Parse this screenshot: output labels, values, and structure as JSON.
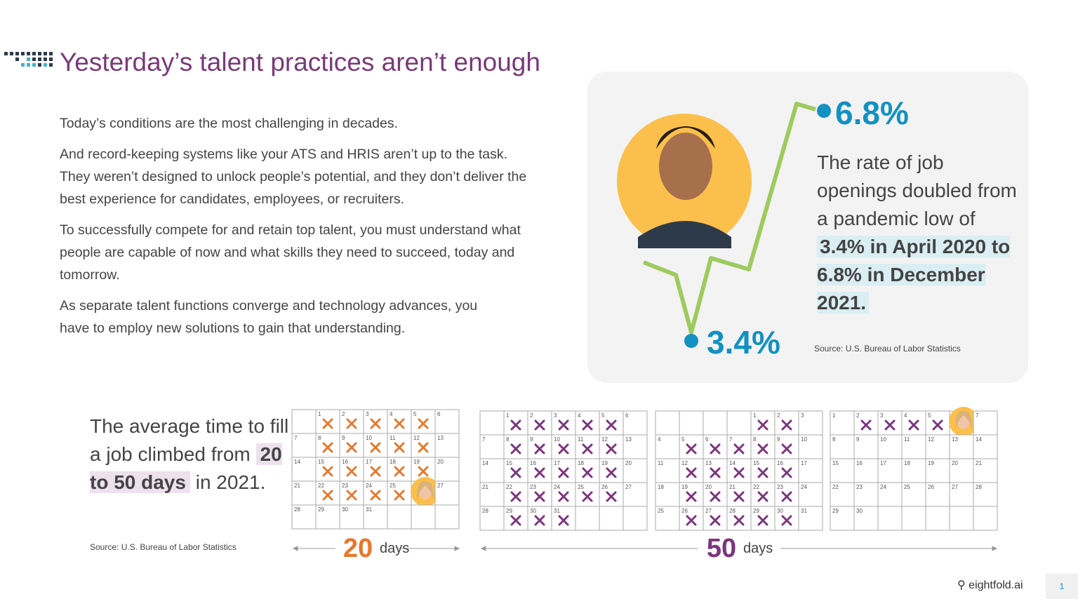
{
  "header": {
    "title": "Yesterday’s talent practices aren’t enough"
  },
  "body": {
    "paragraphs": [
      "Today’s conditions are the most challenging in decades.",
      "And record-keeping systems like your ATS and HRIS aren’t up to the task. They weren’t designed to unlock people’s potential, and they don’t deliver the best experience for candidates, employees, or recruiters.",
      "To successfully compete for and retain top talent, you must understand what people are capable of now and what skills they need to succeed, today and tomorrow.",
      "As separate talent functions converge and technology advances, you have to employ new solutions to gain that understanding."
    ]
  },
  "openings": {
    "high": "6.8%",
    "low": "3.4%",
    "text": "The rate of job openings doubled from a pandemic low of",
    "highlight": "3.4% in April 2020 to 6.8% in December 2021.",
    "source": "Source: U.S. Bureau of Labor Statistics"
  },
  "time_to_fill": {
    "text": "The average time to fill a job climbed from",
    "highlight": "20 to 50 days",
    "text_end": "in 2021.",
    "source": "Source: U.S. Bureau of Labor Statistics",
    "label_20": "20",
    "label_50": "50",
    "unit_20": "days",
    "unit_50": "days",
    "calendars": [
      {
        "color": "#e8782a",
        "cells": [
          null,
          1,
          2,
          3,
          4,
          5,
          6,
          7,
          8,
          9,
          10,
          11,
          12,
          13,
          14,
          15,
          16,
          17,
          18,
          19,
          20,
          21,
          22,
          23,
          24,
          25,
          26,
          27,
          28,
          29,
          30,
          31,
          null,
          null,
          null
        ],
        "crossed": [
          1,
          2,
          3,
          4,
          5,
          8,
          9,
          10,
          11,
          12,
          15,
          16,
          17,
          18,
          19,
          22,
          23,
          24,
          25
        ],
        "face": 26
      },
      {
        "color": "#7b3580",
        "cells": [
          null,
          1,
          2,
          3,
          4,
          5,
          6,
          7,
          8,
          9,
          10,
          11,
          12,
          13,
          14,
          15,
          16,
          17,
          18,
          19,
          20,
          21,
          22,
          23,
          24,
          25,
          26,
          27,
          28,
          29,
          30,
          31,
          null,
          null,
          null
        ],
        "crossed": [
          1,
          2,
          3,
          4,
          5,
          8,
          9,
          10,
          11,
          12,
          15,
          16,
          17,
          18,
          19,
          22,
          23,
          24,
          25,
          26,
          29,
          30,
          31
        ]
      },
      {
        "color": "#7b3580",
        "cells": [
          null,
          null,
          null,
          null,
          1,
          2,
          3,
          4,
          5,
          6,
          7,
          8,
          9,
          10,
          11,
          12,
          13,
          14,
          15,
          16,
          17,
          18,
          19,
          20,
          21,
          22,
          23,
          24,
          25,
          26,
          27,
          28,
          29,
          30,
          31
        ],
        "crossed": [
          1,
          2,
          5,
          6,
          7,
          8,
          9,
          12,
          13,
          14,
          15,
          16,
          19,
          20,
          21,
          22,
          23,
          26,
          27,
          28,
          29,
          30
        ]
      },
      {
        "color": "#7b3580",
        "cells": [
          1,
          2,
          3,
          4,
          5,
          6,
          7,
          8,
          9,
          10,
          11,
          12,
          13,
          14,
          15,
          16,
          17,
          18,
          19,
          20,
          21,
          22,
          23,
          24,
          25,
          26,
          27,
          28,
          29,
          30,
          null,
          null,
          null,
          null,
          null
        ],
        "crossed": [
          2,
          3,
          4,
          5
        ],
        "face": 6
      }
    ]
  },
  "footer": {
    "brand": "eightfold.ai",
    "page": "1"
  }
}
